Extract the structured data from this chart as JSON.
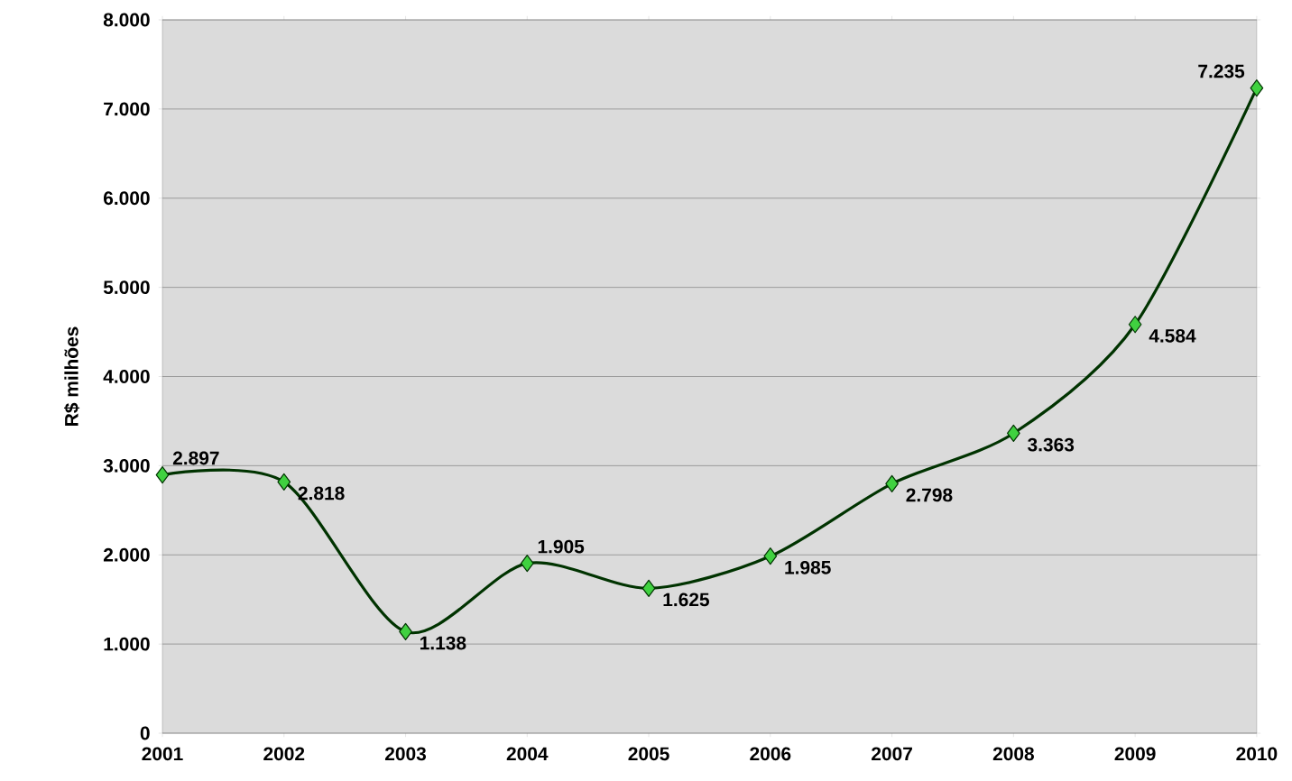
{
  "chart_data": {
    "type": "line",
    "ylabel": "R$ milhões",
    "categories": [
      "2001",
      "2002",
      "2003",
      "2004",
      "2005",
      "2006",
      "2007",
      "2008",
      "2009",
      "2010"
    ],
    "series": [
      {
        "color": "#003300",
        "values": [
          2897,
          2818,
          1138,
          1905,
          1625,
          1985,
          2798,
          3363,
          4584,
          7235
        ],
        "value_labels": [
          "2.897",
          "2.818",
          "1.138",
          "1.905",
          "1.625",
          "1.985",
          "2.798",
          "3.363",
          "4.584",
          "7.235"
        ]
      }
    ],
    "ylim": [
      0,
      8000
    ],
    "yticks": [
      0,
      {
        "value": 1000,
        "label": "1.000"
      },
      {
        "value": 2000,
        "label": "2.000"
      },
      {
        "value": 3000,
        "label": "3.000"
      },
      {
        "value": 4000,
        "label": "4.000"
      },
      {
        "value": 5000,
        "label": "5.000"
      },
      {
        "value": 6000,
        "label": "6.000"
      },
      {
        "value": 7000,
        "label": "7.000"
      },
      {
        "value": 8000,
        "label": "8.000"
      }
    ],
    "grid": "y",
    "marker": "diamond",
    "line_style": "solid"
  }
}
